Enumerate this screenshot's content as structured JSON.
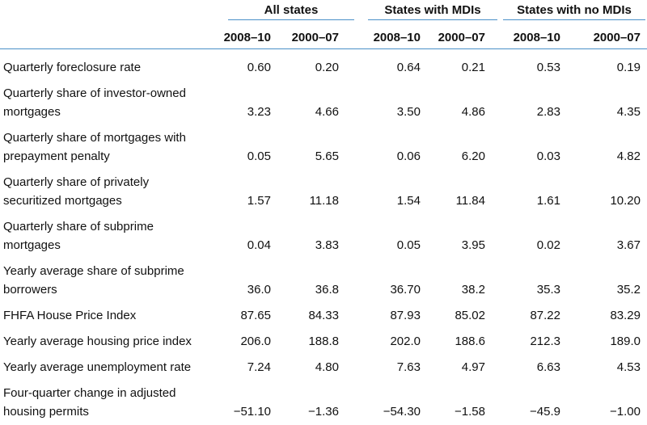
{
  "groups": [
    "All states",
    "States with MDIs",
    "States with no MDIs"
  ],
  "periods": [
    "2008–10",
    "2000–07",
    "2008–10",
    "2000–07",
    "2008–10",
    "2000–07"
  ],
  "rows": [
    {
      "label": [
        "Quarterly foreclosure rate"
      ],
      "values": [
        "0.60",
        "0.20",
        "0.64",
        "0.21",
        "0.53",
        "0.19"
      ]
    },
    {
      "label": [
        "Quarterly share of investor-owned",
        "mortgages"
      ],
      "values": [
        "3.23",
        "4.66",
        "3.50",
        "4.86",
        "2.83",
        "4.35"
      ]
    },
    {
      "label": [
        "Quarterly share of mortgages with",
        "prepayment penalty"
      ],
      "values": [
        "0.05",
        "5.65",
        "0.06",
        "6.20",
        "0.03",
        "4.82"
      ]
    },
    {
      "label": [
        "Quarterly share of privately",
        "securitized mortgages"
      ],
      "values": [
        "1.57",
        "11.18",
        "1.54",
        "11.84",
        "1.61",
        "10.20"
      ]
    },
    {
      "label": [
        "Quarterly share of subprime",
        "mortgages"
      ],
      "values": [
        "0.04",
        "3.83",
        "0.05",
        "3.95",
        "0.02",
        "3.67"
      ]
    },
    {
      "label": [
        "Yearly average share of subprime",
        "borrowers"
      ],
      "values": [
        "36.0",
        "36.8",
        "36.70",
        "38.2",
        "35.3",
        "35.2"
      ]
    },
    {
      "label": [
        "FHFA House Price Index"
      ],
      "values": [
        "87.65",
        "84.33",
        "87.93",
        "85.02",
        "87.22",
        "83.29"
      ]
    },
    {
      "label": [
        "Yearly average housing price index"
      ],
      "values": [
        "206.0",
        "188.8",
        "202.0",
        "188.6",
        "212.3",
        "189.0"
      ]
    },
    {
      "label": [
        "Yearly average unemployment rate"
      ],
      "values": [
        "7.24",
        "4.80",
        "7.63",
        "4.97",
        "6.63",
        "4.53"
      ]
    },
    {
      "label": [
        "Four-quarter change in adjusted",
        "housing permits"
      ],
      "values": [
        "−51.10",
        "−1.36",
        "−54.30",
        "−1.58",
        "−45.9",
        "−1.00"
      ]
    }
  ]
}
